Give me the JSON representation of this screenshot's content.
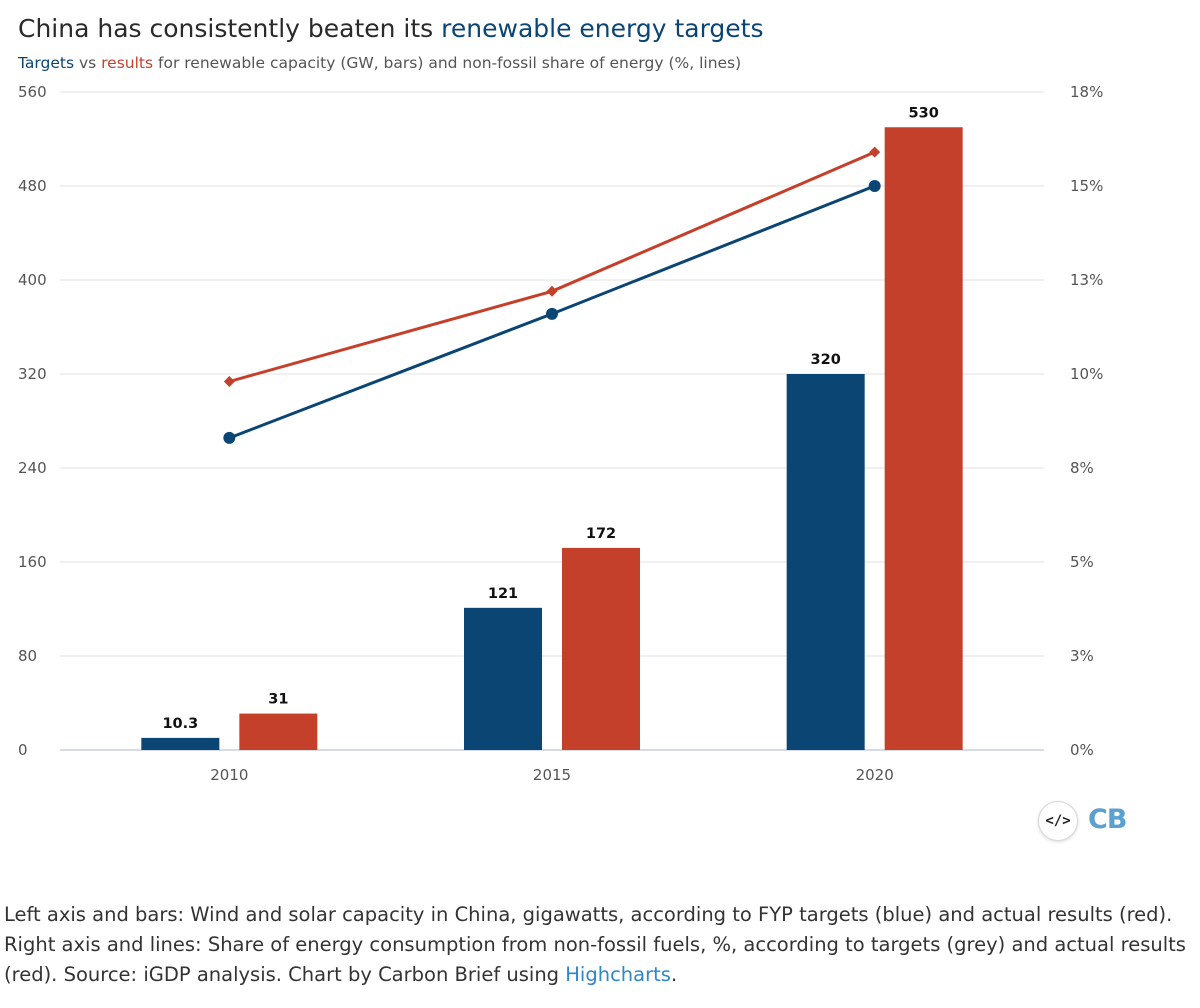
{
  "header": {
    "title_pre": "China has consistently beaten its ",
    "title_highlight": "renewable energy targets",
    "subtitle_targets": "Targets",
    "subtitle_vs": " vs ",
    "subtitle_results": "results",
    "subtitle_rest": " for renewable capacity (GW, bars) and non-fossil share of energy (%, lines)"
  },
  "chart_data": {
    "type": "bar",
    "categories": [
      "2010",
      "2015",
      "2020"
    ],
    "left_axis": {
      "min": 0,
      "max": 560,
      "ticks": [
        0,
        80,
        160,
        240,
        320,
        400,
        480,
        560
      ],
      "tick_labels": [
        "0",
        "80",
        "160",
        "240",
        "320",
        "400",
        "480",
        "560"
      ]
    },
    "right_axis": {
      "min": 0,
      "max": 17.5,
      "ticks": [
        0,
        2.5,
        5,
        7.5,
        10,
        12.5,
        15,
        17.5
      ],
      "tick_labels": [
        "0%",
        "3%",
        "5%",
        "8%",
        "10%",
        "13%",
        "15%",
        "18%"
      ]
    },
    "grid": true,
    "series": [
      {
        "type": "bar",
        "axis": "left",
        "color": "#0b4574",
        "values": [
          10.3,
          121,
          320
        ],
        "labels": [
          "10.3",
          "121",
          "320"
        ]
      },
      {
        "type": "bar",
        "axis": "left",
        "color": "#c5402b",
        "values": [
          31,
          172,
          530
        ],
        "labels": [
          "31",
          "172",
          "530"
        ]
      },
      {
        "type": "line",
        "axis": "right",
        "color": "#0b4574",
        "marker": "circle",
        "values": [
          8.3,
          11.6,
          15.0
        ]
      },
      {
        "type": "line",
        "axis": "right",
        "color": "#c5402b",
        "marker": "diamond",
        "values": [
          9.8,
          12.2,
          15.9
        ]
      }
    ]
  },
  "footer": {
    "embed_icon": "code-embed-icon",
    "embed_label": "</>",
    "logo_text": "CB",
    "caption_text": "Left axis and bars: Wind and solar capacity in China, gigawatts, according to FYP targets (blue) and actual results (red). Right axis and lines: Share of energy consumption from non-fossil fuels, %, according to targets (grey) and actual results (red). Source: iGDP analysis. Chart by Carbon Brief using ",
    "caption_link": "Highcharts",
    "caption_end": "."
  }
}
